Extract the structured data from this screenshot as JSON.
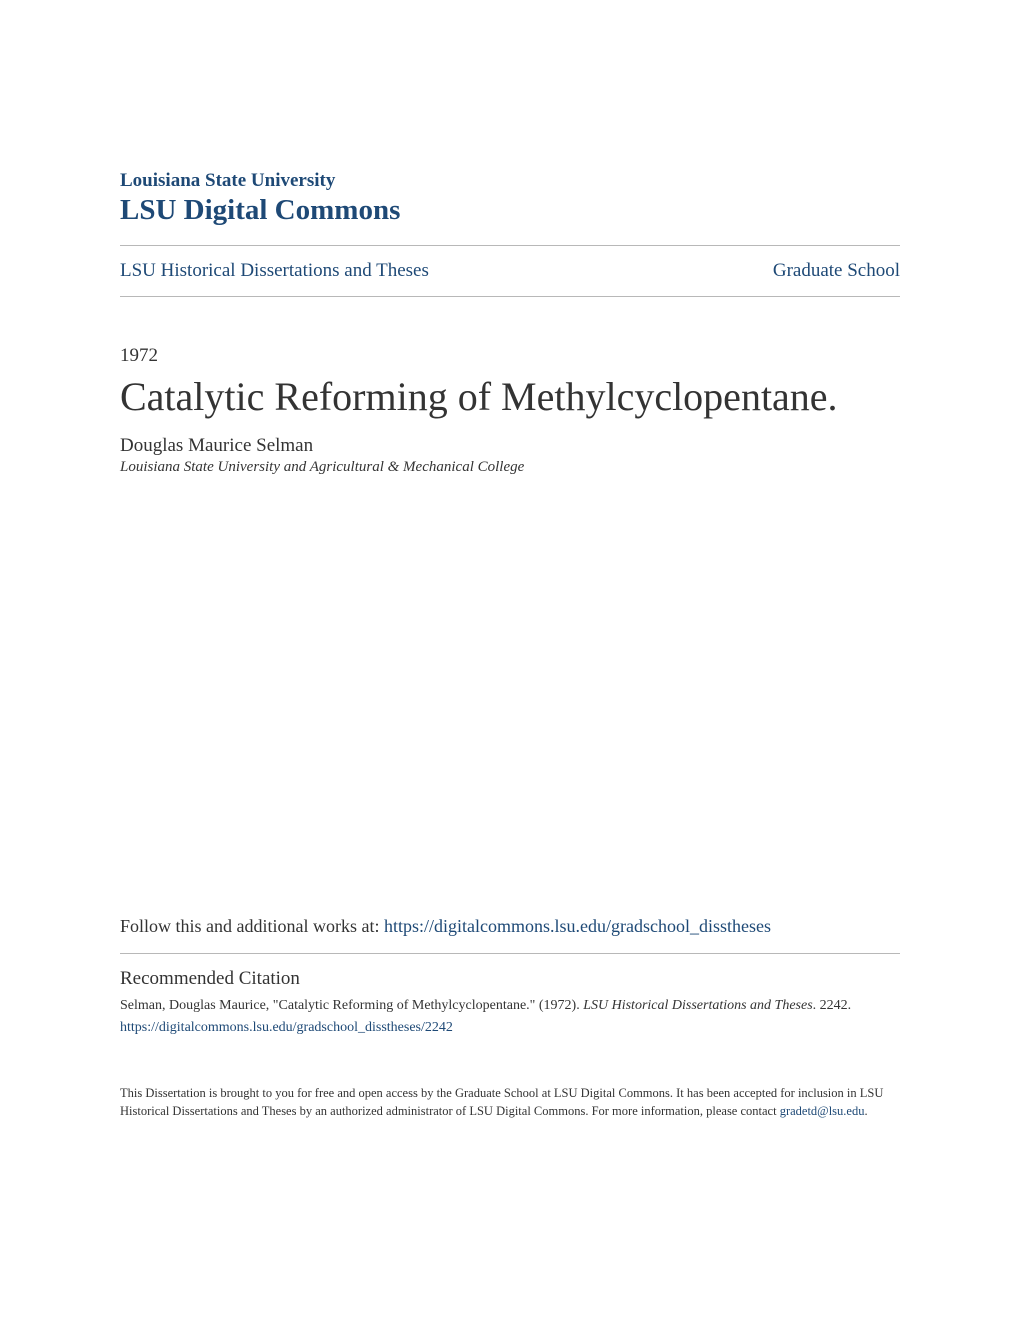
{
  "header": {
    "institution": "Louisiana State University",
    "commons": "LSU Digital Commons"
  },
  "nav": {
    "left": "LSU Historical Dissertations and Theses",
    "right": "Graduate School"
  },
  "document": {
    "year": "1972",
    "title": "Catalytic Reforming of Methylcyclopentane.",
    "author": "Douglas Maurice Selman",
    "affiliation": "Louisiana State University and Agricultural & Mechanical College"
  },
  "follow": {
    "prefix": "Follow this and additional works at: ",
    "url": "https://digitalcommons.lsu.edu/gradschool_disstheses"
  },
  "citation": {
    "header": "Recommended Citation",
    "author_part": "Selman, Douglas Maurice, \"Catalytic Reforming of Methylcyclopentane.\" (1972). ",
    "series_part": "LSU Historical Dissertations and Theses",
    "number_part": ". 2242.",
    "url": "https://digitalcommons.lsu.edu/gradschool_disstheses/2242"
  },
  "footer": {
    "text_part1": "This Dissertation is brought to you for free and open access by the Graduate School at LSU Digital Commons. It has been accepted for inclusion in LSU Historical Dissertations and Theses by an authorized administrator of LSU Digital Commons. For more information, please contact ",
    "email": "gradetd@lsu.edu",
    "text_part2": "."
  },
  "colors": {
    "primary": "#1e4976",
    "text": "#333333",
    "divider": "#b8b8b8",
    "background": "#ffffff"
  }
}
